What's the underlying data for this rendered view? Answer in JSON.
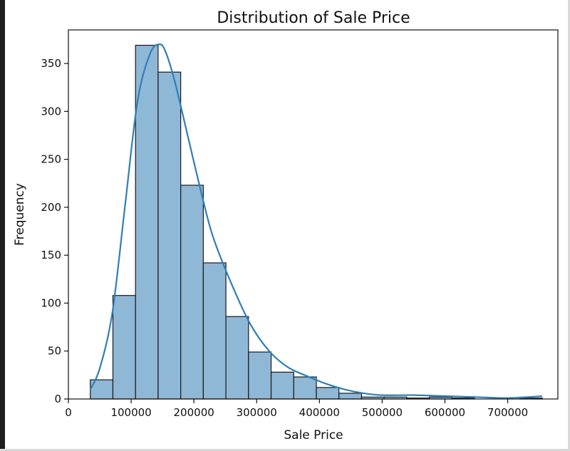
{
  "chart_data": {
    "type": "bar",
    "title": "Distribution of Sale Price",
    "xlabel": "Sale Price",
    "ylabel": "Frequency",
    "xlim": [
      0,
      780000
    ],
    "ylim": [
      0,
      385
    ],
    "x_ticks": [
      0,
      100000,
      200000,
      300000,
      400000,
      500000,
      600000,
      700000
    ],
    "y_ticks": [
      0,
      50,
      100,
      150,
      200,
      250,
      300,
      350
    ],
    "bin_edges": [
      34900,
      70918,
      106936,
      142954,
      178972,
      214990,
      251008,
      287026,
      323044,
      359062,
      395080,
      431098,
      467116,
      503134,
      539152,
      575170,
      611188,
      647206,
      683224,
      719242,
      755260
    ],
    "counts": [
      20,
      108,
      369,
      341,
      223,
      142,
      86,
      49,
      28,
      23,
      12,
      6,
      2,
      2,
      1,
      2,
      1,
      0,
      0,
      1
    ],
    "kde": {
      "x": [
        34900,
        50000,
        70000,
        90000,
        110000,
        130000,
        145000,
        155000,
        170000,
        190000,
        210000,
        230000,
        260000,
        290000,
        320000,
        350000,
        380000,
        410000,
        440000,
        470000,
        500000,
        550000,
        600000,
        650000,
        700000,
        755000
      ],
      "y": [
        10,
        32,
        90,
        200,
        310,
        360,
        370,
        362,
        330,
        275,
        220,
        170,
        120,
        78,
        50,
        33,
        24,
        16,
        10,
        6,
        4,
        4,
        3,
        2,
        1,
        3
      ]
    },
    "grid": false,
    "colors": {
      "bar_fill": "#8fb7d6",
      "bar_edge": "#1a1a1a",
      "kde_line": "#2f7fb8",
      "axis": "#111111"
    }
  }
}
